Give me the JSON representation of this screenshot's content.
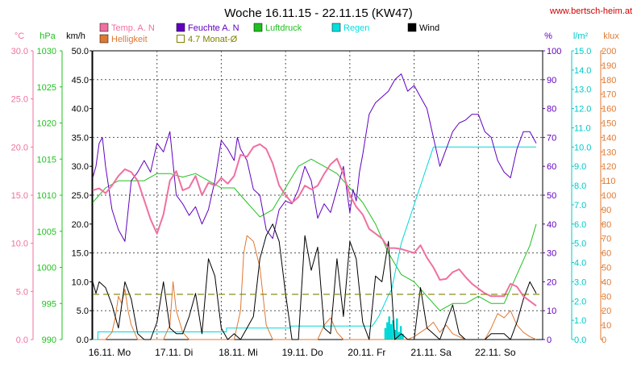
{
  "chart_data": {
    "type": "line",
    "title": "Woche 16.11.15 - 22.11.15 (KW47)",
    "source": "www.bertsch-heim.at",
    "background": "#ffffff",
    "x_categories": [
      "16.11. Mo",
      "17.11. Di",
      "18.11. Mi",
      "19.11. Do",
      "20.11. Fr",
      "21.11. Sa",
      "22.11. So"
    ],
    "x_range": [
      0,
      7
    ],
    "grid": true,
    "axes": [
      {
        "id": "temp",
        "unit": "°C",
        "color": "#f070a0",
        "side": "left",
        "range": [
          0,
          30
        ],
        "ticks": [
          "0.0",
          "5.0",
          "10.0",
          "15.0",
          "20.0",
          "25.0",
          "30.0"
        ]
      },
      {
        "id": "pressure",
        "unit": "hPa",
        "color": "#20c020",
        "side": "left",
        "range": [
          990,
          1030
        ],
        "ticks": [
          "990",
          "995",
          "1000",
          "1005",
          "1010",
          "1015",
          "1020",
          "1025",
          "1030"
        ]
      },
      {
        "id": "wind",
        "unit": "km/h",
        "color": "#000000",
        "side": "left",
        "range": [
          0,
          50
        ],
        "ticks": [
          "0.0",
          "5.0",
          "10.0",
          "15.0",
          "20.0",
          "25.0",
          "30.0",
          "35.0",
          "40.0",
          "45.0",
          "50.0"
        ]
      },
      {
        "id": "humidity",
        "unit": "%",
        "color": "#6000c0",
        "side": "right",
        "range": [
          0,
          100
        ],
        "ticks": [
          "0",
          "10",
          "20",
          "30",
          "40",
          "50",
          "60",
          "70",
          "80",
          "90",
          "100"
        ]
      },
      {
        "id": "rain",
        "unit": "l/m²",
        "color": "#00c8c8",
        "side": "right",
        "range": [
          0,
          15
        ],
        "ticks": [
          "0.0",
          "1.0",
          "2.0",
          "3.0",
          "4.0",
          "5.0",
          "6.0",
          "7.0",
          "8.0",
          "9.0",
          "10.0",
          "11.0",
          "12.0",
          "13.0",
          "14.0",
          "15.0"
        ]
      },
      {
        "id": "light",
        "unit": "klux",
        "color": "#e07830",
        "side": "right",
        "range": [
          0,
          200
        ],
        "ticks": [
          "0",
          "10",
          "20",
          "30",
          "40",
          "50",
          "60",
          "70",
          "80",
          "90",
          "100",
          "110",
          "120",
          "130",
          "140",
          "150",
          "160",
          "170",
          "180",
          "190",
          "200"
        ]
      }
    ],
    "legend": [
      {
        "label": "Temp. A. N",
        "color": "#f070a0",
        "series": "temp"
      },
      {
        "label": "Feuchte A. N",
        "color": "#6000c0",
        "series": "humidity"
      },
      {
        "label": "Luftdruck",
        "color": "#20c020",
        "series": "pressure"
      },
      {
        "label": "Regen",
        "color": "#00e0e0",
        "series": "rain"
      },
      {
        "label": "Wind",
        "color": "#000000",
        "series": "wind"
      },
      {
        "label": "Helligkeit",
        "color": "#e07830",
        "series": "light"
      },
      {
        "label": "4.7 Monat-Ø",
        "color": "#808000",
        "series": "avg",
        "hollow": true
      }
    ],
    "series": [
      {
        "id": "temp",
        "axis": "temp",
        "color": "#f070a0",
        "width": 2,
        "x": [
          0,
          0.1,
          0.2,
          0.3,
          0.4,
          0.5,
          0.6,
          0.7,
          0.8,
          0.9,
          1,
          1.1,
          1.2,
          1.3,
          1.4,
          1.5,
          1.6,
          1.7,
          1.8,
          1.9,
          2,
          2.1,
          2.2,
          2.3,
          2.4,
          2.5,
          2.6,
          2.7,
          2.8,
          2.9,
          3,
          3.1,
          3.2,
          3.3,
          3.4,
          3.5,
          3.6,
          3.7,
          3.8,
          3.9,
          4,
          4.1,
          4.2,
          4.3,
          4.4,
          4.5,
          4.6,
          4.7,
          4.8,
          4.9,
          5,
          5.1,
          5.2,
          5.3,
          5.4,
          5.5,
          5.6,
          5.7,
          5.8,
          5.9,
          6,
          6.1,
          6.2,
          6.3,
          6.4,
          6.5,
          6.6,
          6.7,
          6.8,
          6.9
        ],
        "y": [
          15.5,
          15.7,
          15.2,
          16.0,
          17.0,
          17.7,
          17.4,
          16.5,
          14.5,
          12.5,
          11.0,
          13.0,
          16.5,
          17.5,
          15.5,
          15.8,
          17.0,
          15.0,
          16.3,
          16.0,
          16.8,
          16.2,
          17.0,
          19.2,
          19.0,
          20.0,
          20.3,
          19.8,
          18.3,
          16.0,
          15.0,
          14.2,
          14.8,
          16.0,
          15.6,
          16.0,
          17.2,
          18.2,
          18.8,
          17.2,
          15.0,
          13.8,
          13.0,
          11.5,
          11.0,
          10.5,
          9.5,
          9.5,
          9.4,
          9.2,
          9.0,
          9.8,
          8.5,
          7.5,
          6.2,
          6.3,
          7.0,
          7.3,
          6.5,
          5.8,
          5.3,
          4.8,
          4.5,
          4.5,
          4.5,
          5.8,
          5.5,
          4.5,
          4.0,
          3.5
        ]
      },
      {
        "id": "humidity",
        "axis": "humidity",
        "color": "#6000c0",
        "width": 1,
        "x": [
          0,
          0.05,
          0.1,
          0.15,
          0.2,
          0.3,
          0.4,
          0.5,
          0.6,
          0.7,
          0.8,
          0.9,
          1.0,
          1.1,
          1.2,
          1.3,
          1.4,
          1.5,
          1.6,
          1.7,
          1.8,
          1.9,
          2.0,
          2.1,
          2.2,
          2.25,
          2.3,
          2.4,
          2.5,
          2.6,
          2.7,
          2.8,
          2.9,
          3.0,
          3.1,
          3.2,
          3.3,
          3.4,
          3.5,
          3.6,
          3.7,
          3.8,
          3.9,
          4.0,
          4.05,
          4.1,
          4.15,
          4.2,
          4.3,
          4.4,
          4.5,
          4.6,
          4.7,
          4.8,
          4.9,
          5.0,
          5.1,
          5.2,
          5.3,
          5.4,
          5.5,
          5.6,
          5.7,
          5.8,
          5.9,
          6.0,
          6.1,
          6.2,
          6.3,
          6.4,
          6.5,
          6.6,
          6.7,
          6.8,
          6.9
        ],
        "y": [
          56,
          60,
          68,
          70,
          60,
          45,
          38,
          34,
          55,
          58,
          62,
          58,
          68,
          65,
          72,
          50,
          47,
          43,
          46,
          40,
          45,
          55,
          69,
          66,
          62,
          70,
          66,
          62,
          52,
          50,
          38,
          35,
          45,
          48,
          47,
          52,
          60,
          55,
          42,
          47,
          44,
          52,
          60,
          44,
          52,
          48,
          58,
          64,
          78,
          82,
          84,
          86,
          90,
          92,
          86,
          88,
          84,
          80,
          70,
          60,
          66,
          72,
          75,
          76,
          78,
          78,
          72,
          70,
          62,
          58,
          56,
          66,
          72,
          72,
          68
        ]
      },
      {
        "id": "pressure",
        "axis": "pressure",
        "color": "#20c020",
        "width": 1,
        "x": [
          0,
          0.2,
          0.4,
          0.6,
          0.8,
          1.0,
          1.2,
          1.4,
          1.6,
          1.8,
          2.0,
          2.2,
          2.4,
          2.6,
          2.8,
          3.0,
          3.2,
          3.4,
          3.6,
          3.8,
          4.0,
          4.2,
          4.4,
          4.6,
          4.8,
          5.0,
          5.2,
          5.4,
          5.6,
          5.8,
          6.0,
          6.2,
          6.4,
          6.6,
          6.8,
          6.9
        ],
        "y": [
          1009,
          1011,
          1012,
          1012,
          1012,
          1013,
          1013,
          1012.5,
          1013,
          1012,
          1011,
          1011,
          1009,
          1007,
          1008,
          1011,
          1014,
          1015,
          1014,
          1013,
          1011,
          1009,
          1006,
          1002,
          999,
          998,
          996,
          994,
          995,
          995,
          996,
          995,
          995,
          999,
          1003,
          1006
        ]
      },
      {
        "id": "wind",
        "axis": "wind",
        "color": "#000000",
        "width": 1,
        "x": [
          0,
          0.05,
          0.1,
          0.2,
          0.3,
          0.4,
          0.5,
          0.6,
          0.7,
          0.8,
          0.9,
          1.0,
          1.1,
          1.2,
          1.3,
          1.4,
          1.5,
          1.6,
          1.7,
          1.8,
          1.9,
          2.0,
          2.1,
          2.2,
          2.3,
          2.4,
          2.5,
          2.6,
          2.7,
          2.8,
          2.9,
          3.0,
          3.1,
          3.2,
          3.3,
          3.4,
          3.5,
          3.6,
          3.7,
          3.8,
          3.9,
          4.0,
          4.1,
          4.2,
          4.3,
          4.4,
          4.5,
          4.6,
          4.7,
          4.8,
          4.9,
          5.0,
          5.1,
          5.2,
          5.3,
          5.4,
          5.5,
          5.6,
          5.7,
          5.8,
          5.9,
          6.0,
          6.1,
          6.2,
          6.3,
          6.4,
          6.5,
          6.6,
          6.7,
          6.8,
          6.9
        ],
        "y": [
          10,
          8,
          10,
          9,
          6,
          2,
          10,
          7,
          1,
          0,
          0,
          3,
          10,
          2,
          1,
          1,
          4,
          8,
          1,
          14,
          11,
          2,
          0,
          1,
          0,
          2,
          4,
          14,
          18,
          20,
          17,
          8,
          0,
          0,
          18,
          12,
          16,
          2,
          1,
          14,
          4,
          17,
          14,
          3,
          0,
          11,
          10,
          17,
          0,
          1,
          0,
          0,
          9,
          2,
          1,
          0,
          3,
          6,
          1,
          0,
          0,
          0,
          0,
          1,
          1,
          1,
          0,
          3,
          7,
          10,
          8
        ]
      },
      {
        "id": "light",
        "axis": "light",
        "color": "#e07830",
        "width": 1,
        "x": [
          0,
          0.2,
          0.3,
          0.35,
          0.4,
          0.45,
          0.5,
          0.55,
          0.6,
          0.7,
          0.9,
          1.1,
          1.2,
          1.25,
          1.3,
          1.4,
          1.5,
          1.6,
          1.7,
          1.8,
          1.9,
          2.0,
          2.1,
          2.2,
          2.3,
          2.35,
          2.4,
          2.5,
          2.6,
          2.7,
          2.8,
          2.9,
          3.0,
          3.1,
          3.2,
          3.3,
          3.4,
          3.5,
          3.6,
          3.7,
          3.8,
          3.9,
          4.0,
          4.1,
          4.2,
          4.3,
          4.4,
          4.5,
          4.6,
          4.7,
          4.8,
          4.9,
          5.0,
          5.1,
          5.2,
          5.3,
          5.4,
          5.5,
          5.6,
          5.7,
          5.8,
          5.9,
          6.0,
          6.1,
          6.2,
          6.3,
          6.4,
          6.5,
          6.6,
          6.7,
          6.8,
          6.9
        ],
        "y": [
          0,
          0,
          5,
          15,
          30,
          25,
          35,
          20,
          10,
          0,
          0,
          0,
          10,
          40,
          20,
          5,
          0,
          0,
          0,
          0,
          0,
          0,
          0,
          0,
          20,
          60,
          72,
          68,
          50,
          10,
          0,
          0,
          0,
          0,
          0,
          0,
          0,
          0,
          10,
          15,
          5,
          0,
          0,
          0,
          0,
          0,
          0,
          0,
          0,
          0,
          0,
          0,
          2,
          5,
          8,
          12,
          5,
          10,
          4,
          2,
          0,
          0,
          0,
          0,
          8,
          18,
          15,
          20,
          10,
          5,
          2,
          0
        ]
      },
      {
        "id": "rain",
        "axis": "rain",
        "color": "#00d8d8",
        "width": 1,
        "x": [
          0,
          0.08,
          0.08,
          2.08,
          2.08,
          3.08,
          3.08,
          4.35,
          4.45,
          4.6,
          4.65,
          4.8,
          4.95,
          5.1,
          5.25,
          5.3,
          5.45,
          5.6,
          6.0,
          6.5,
          6.9
        ],
        "y": [
          0,
          0,
          0.4,
          0.4,
          0.6,
          0.6,
          0.7,
          0.7,
          1.2,
          2.3,
          2.6,
          5.0,
          6.5,
          8.0,
          9.5,
          10.0,
          10.0,
          10.0,
          10.0,
          10.0,
          10.0
        ]
      }
    ],
    "rain_bars": {
      "axis": "rain",
      "color": "#00d8d8",
      "x": [
        4.55,
        4.58,
        4.61,
        4.64,
        4.67,
        4.7,
        4.73,
        4.76,
        4.79,
        4.82
      ],
      "values": [
        0.6,
        0.9,
        1.2,
        0.8,
        1.0,
        0.5,
        1.1,
        0.4,
        0.7,
        0.3
      ]
    },
    "monthly_average": {
      "axis": "temp",
      "value": 4.7,
      "color": "#808000"
    }
  }
}
